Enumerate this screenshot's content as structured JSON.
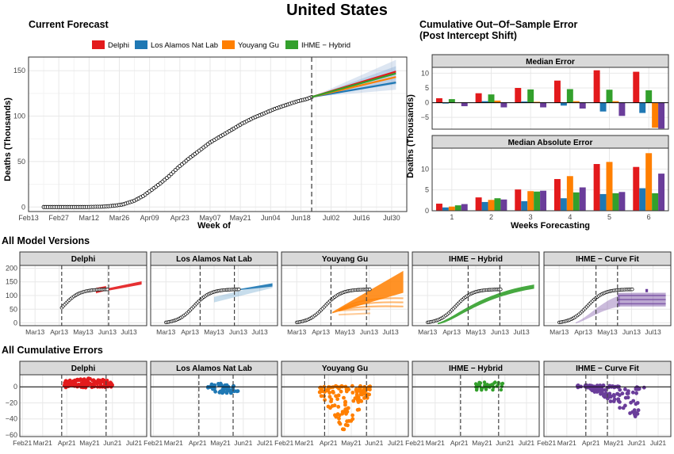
{
  "page_title": "United States",
  "current_forecast": {
    "title": "Current Forecast",
    "legend": [
      {
        "name": "Delphi",
        "color": "#e31a1c"
      },
      {
        "name": "Los Alamos Nat Lab",
        "color": "#1f78b4"
      },
      {
        "name": "Youyang Gu",
        "color": "#ff7f00"
      },
      {
        "name": "IHME − Hybrid",
        "color": "#33a02c"
      }
    ],
    "xlabel": "Week of",
    "ylabel": "Deaths (Thousands)",
    "xticks": [
      "Feb13",
      "Feb27",
      "Mar12",
      "Mar26",
      "Apr09",
      "Apr23",
      "May07",
      "May21",
      "Jun04",
      "Jun18",
      "Jul02",
      "Jul16",
      "Jul30"
    ],
    "yticks": [
      "0",
      "50",
      "100",
      "150"
    ]
  },
  "cumulative_error": {
    "title_line1": "Cumulative Out−Of−Sample Error",
    "title_line2": "(Post Intercept Shift)",
    "ylabel": "Deaths (Thousands)",
    "xlabel": "Weeks Forecasting",
    "xticks": [
      "1",
      "2",
      "3",
      "4",
      "5",
      "6"
    ],
    "median_error": {
      "title": "Median Error",
      "yticks": [
        "10",
        "5",
        "0",
        "−5"
      ]
    },
    "median_abs_error": {
      "title": "Median Absolute Error",
      "yticks": [
        "10",
        "5",
        "0"
      ]
    }
  },
  "all_versions": {
    "title": "All Model Versions",
    "yticks": [
      "200",
      "150",
      "100",
      "50",
      "0"
    ],
    "xticks": [
      "Mar13",
      "Apr13",
      "May13",
      "Jun13",
      "Jul13"
    ],
    "panels": [
      "Delphi",
      "Los Alamos Nat Lab",
      "Youyang Gu",
      "IHME − Hybrid",
      "IHME − Curve Fit"
    ]
  },
  "all_errors": {
    "title": "All Cumulative Errors",
    "yticks": [
      "0",
      "−20",
      "−40",
      "−60"
    ],
    "xticks": [
      "Feb21",
      "Mar21",
      "Apr21",
      "May21",
      "Jun21",
      "Jul21"
    ],
    "panels": [
      "Delphi",
      "Los Alamos Nat Lab",
      "Youyang Gu",
      "IHME − Hybrid",
      "IHME − Curve Fit"
    ]
  },
  "chart_data": [
    {
      "type": "line",
      "title": "Current Forecast",
      "xlabel": "Week of",
      "ylabel": "Deaths (Thousands)",
      "ylim": [
        -5,
        165
      ],
      "observed": [
        [
          "2020-02-20",
          0
        ],
        [
          "2020-03-01",
          0
        ],
        [
          "2020-03-10",
          0
        ],
        [
          "2020-03-18",
          0.3
        ],
        [
          "2020-03-24",
          1.5
        ],
        [
          "2020-03-28",
          3
        ],
        [
          "2020-04-02",
          7
        ],
        [
          "2020-04-06",
          12
        ],
        [
          "2020-04-10",
          19
        ],
        [
          "2020-04-14",
          26
        ],
        [
          "2020-04-18",
          34
        ],
        [
          "2020-04-22",
          43
        ],
        [
          "2020-04-27",
          53
        ],
        [
          "2020-05-02",
          62
        ],
        [
          "2020-05-07",
          71
        ],
        [
          "2020-05-12",
          78
        ],
        [
          "2020-05-17",
          85
        ],
        [
          "2020-05-22",
          92
        ],
        [
          "2020-05-27",
          98
        ],
        [
          "2020-06-01",
          103
        ],
        [
          "2020-06-06",
          108
        ],
        [
          "2020-06-11",
          112
        ],
        [
          "2020-06-16",
          116
        ],
        [
          "2020-06-21",
          119
        ],
        [
          "2020-06-23",
          121
        ]
      ],
      "forecast_start": "2020-06-23",
      "series": [
        {
          "name": "Delphi",
          "color": "#e31a1c",
          "x": [
            "2020-06-23",
            "2020-08-01"
          ],
          "y": [
            121,
            149
          ]
        },
        {
          "name": "Los Alamos Nat Lab",
          "color": "#1f78b4",
          "x": [
            "2020-06-23",
            "2020-08-01"
          ],
          "y": [
            121,
            137
          ]
        },
        {
          "name": "Youyang Gu",
          "color": "#ff7f00",
          "x": [
            "2020-06-23",
            "2020-08-01"
          ],
          "y": [
            121,
            143
          ]
        },
        {
          "name": "IHME − Hybrid",
          "color": "#33a02c",
          "x": [
            "2020-06-23",
            "2020-08-01"
          ],
          "y": [
            121,
            147
          ]
        }
      ]
    },
    {
      "type": "bar",
      "title": "Median Error",
      "categories": [
        1,
        2,
        3,
        4,
        5,
        6
      ],
      "ylim": [
        -9,
        12
      ],
      "series": [
        {
          "name": "Delphi",
          "color": "#e31a1c",
          "values": [
            1.5,
            3.2,
            5,
            7.5,
            11,
            10.5
          ]
        },
        {
          "name": "Los Alamos Nat Lab",
          "color": "#1f78b4",
          "values": [
            -0.3,
            0.5,
            0.4,
            -1,
            -3,
            -3.5
          ]
        },
        {
          "name": "IHME − Hybrid",
          "color": "#33a02c",
          "values": [
            1.2,
            2.8,
            4.5,
            4.6,
            4.4,
            4.2
          ]
        },
        {
          "name": "Youyang Gu",
          "color": "#ff7f00",
          "values": [
            0,
            0.7,
            0.3,
            0.5,
            0.5,
            -8.5
          ]
        },
        {
          "name": "IHME − Curve Fit",
          "color": "#6a3d9a",
          "values": [
            -1.2,
            -1.6,
            -1.6,
            -2,
            -4.5,
            -8.8
          ]
        }
      ]
    },
    {
      "type": "bar",
      "title": "Median Absolute Error",
      "categories": [
        1,
        2,
        3,
        4,
        5,
        6
      ],
      "ylim": [
        0,
        15
      ],
      "series": [
        {
          "name": "Delphi",
          "color": "#e31a1c",
          "values": [
            1.7,
            3.2,
            5.1,
            7.6,
            11.2,
            10.5
          ]
        },
        {
          "name": "Los Alamos Nat Lab",
          "color": "#1f78b4",
          "values": [
            0.8,
            2.1,
            2.3,
            3,
            4,
            5.4
          ]
        },
        {
          "name": "Youyang Gu",
          "color": "#ff7f00",
          "values": [
            1.0,
            2.6,
            4.7,
            8.3,
            11.7,
            13.8
          ]
        },
        {
          "name": "IHME − Hybrid",
          "color": "#33a02c",
          "values": [
            1.3,
            3,
            4.6,
            4.4,
            4.2,
            4.2
          ]
        },
        {
          "name": "IHME − Curve Fit",
          "color": "#6a3d9a",
          "values": [
            1.6,
            2.7,
            4.8,
            5.6,
            4.5,
            8.9
          ]
        }
      ]
    }
  ]
}
